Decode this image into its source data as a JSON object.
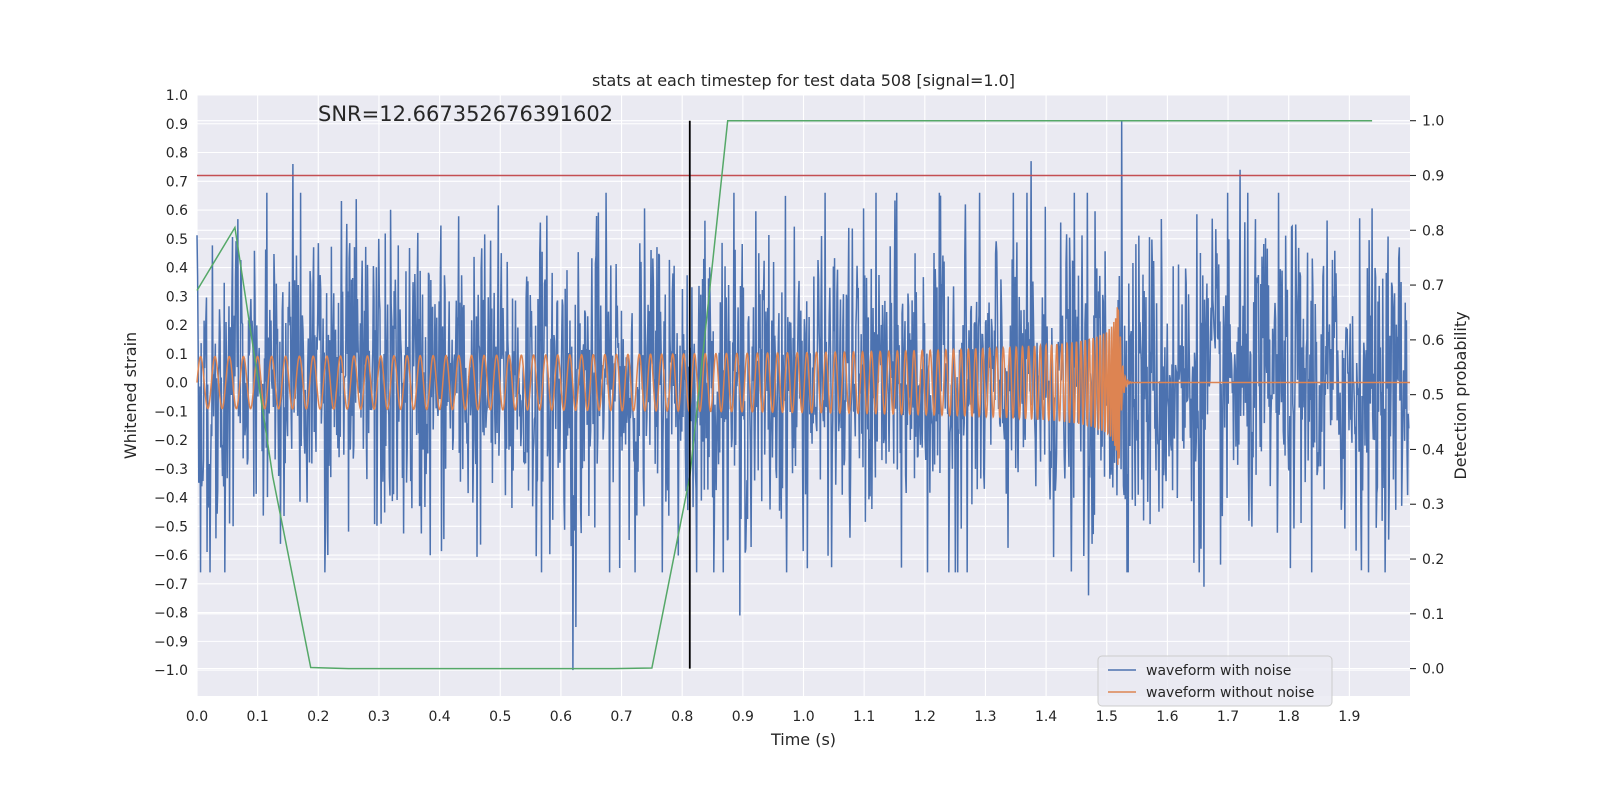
{
  "chart_data": {
    "type": "line",
    "title": "stats at each timestep for test data 508 [signal=1.0]",
    "annotation": "SNR=12.667352676391602",
    "xlabel": "Time (s)",
    "ylabel": "Whitened strain",
    "y2label": "Detection probability",
    "xlim": [
      0.0,
      2.0
    ],
    "ylim": [
      -1.09,
      1.0
    ],
    "y2lim": [
      -0.05,
      1.0469
    ],
    "x_ticks": [
      0.0,
      0.1,
      0.2,
      0.3,
      0.4,
      0.5,
      0.6,
      0.7,
      0.8,
      0.9,
      1.0,
      1.1,
      1.2,
      1.3,
      1.4,
      1.5,
      1.6,
      1.7,
      1.8,
      1.9
    ],
    "x_tick_labels": [
      "0.0",
      "0.1",
      "0.2",
      "0.3",
      "0.4",
      "0.5",
      "0.6",
      "0.7",
      "0.8",
      "0.9",
      "1.0",
      "1.1",
      "1.2",
      "1.3",
      "1.4",
      "1.5",
      "1.6",
      "1.7",
      "1.8",
      "1.9"
    ],
    "y_ticks": [
      -1.0,
      -0.9,
      -0.8,
      -0.7,
      -0.6,
      -0.5,
      -0.4,
      -0.3,
      -0.2,
      -0.1,
      0.0,
      0.1,
      0.2,
      0.3,
      0.4,
      0.5,
      0.6,
      0.7,
      0.8,
      0.9,
      1.0
    ],
    "y_tick_labels": [
      "−1.0",
      "−0.9",
      "−0.8",
      "−0.7",
      "−0.6",
      "−0.5",
      "−0.4",
      "−0.3",
      "−0.2",
      "−0.1",
      "0.0",
      "0.1",
      "0.2",
      "0.3",
      "0.4",
      "0.5",
      "0.6",
      "0.7",
      "0.8",
      "0.9",
      "1.0"
    ],
    "y2_ticks": [
      0.0,
      0.1,
      0.2,
      0.3,
      0.4,
      0.5,
      0.6,
      0.7,
      0.8,
      0.9,
      1.0
    ],
    "y2_tick_labels": [
      "0.0",
      "0.1",
      "0.2",
      "0.3",
      "0.4",
      "0.5",
      "0.6",
      "0.7",
      "0.8",
      "0.9",
      "1.0"
    ],
    "legend": {
      "placement": "lower-right",
      "entries": [
        {
          "label": "waveform with noise",
          "color": "#4c72b0"
        },
        {
          "label": "waveform without noise",
          "color": "#dd8452"
        }
      ]
    },
    "series": [
      {
        "name": "waveform with noise",
        "axis": "left",
        "color": "#4c72b0",
        "generated": true,
        "x_range": [
          0.0,
          1.998
        ],
        "samples": 2048,
        "amplitude_std": 0.27,
        "peaks": [
          {
            "x": 0.158,
            "y": 0.76
          },
          {
            "x": 0.62,
            "y": -1.0
          },
          {
            "x": 0.625,
            "y": -0.85
          },
          {
            "x": 0.895,
            "y": -0.81
          },
          {
            "x": 1.375,
            "y": 0.77
          },
          {
            "x": 1.525,
            "y": 0.91
          },
          {
            "x": 1.72,
            "y": 0.74
          },
          {
            "x": 1.47,
            "y": -0.74
          },
          {
            "x": 1.66,
            "y": -0.71
          }
        ]
      },
      {
        "name": "waveform without noise",
        "axis": "left",
        "color": "#dd8452",
        "generated": true,
        "chirp": {
          "t_merge": 1.52,
          "f_start": 42,
          "amp_start": 0.045,
          "amp_peak": 0.3,
          "offset": 0.0
        }
      },
      {
        "name": "detection probability",
        "axis": "right",
        "color": "#55a868",
        "x": [
          0.0,
          0.0625,
          0.125,
          0.1875,
          0.25,
          0.3125,
          0.375,
          0.4375,
          0.5,
          0.5625,
          0.625,
          0.6875,
          0.75,
          0.8125,
          0.875,
          0.9375,
          1.0,
          1.0625,
          1.125,
          1.1875,
          1.25,
          1.3125,
          1.375,
          1.4375,
          1.5,
          1.5625,
          1.625,
          1.6875,
          1.75,
          1.8125,
          1.875,
          1.9375
        ],
        "y": [
          0.69,
          0.805,
          0.35,
          0.002,
          0.0,
          0.0,
          0.0,
          0.0,
          0.0,
          0.0,
          0.0,
          0.0,
          0.001,
          0.35,
          1.0,
          1.0,
          1.0,
          1.0,
          1.0,
          1.0,
          1.0,
          1.0,
          1.0,
          1.0,
          1.0,
          1.0,
          1.0,
          1.0,
          1.0,
          1.0,
          1.0,
          1.0
        ]
      }
    ],
    "hlines": [
      {
        "name": "threshold",
        "axis": "right",
        "y": 0.9,
        "color": "#c44e52"
      }
    ],
    "vlines": [
      {
        "name": "marker",
        "x": 0.8125,
        "y2_from": 0.0,
        "y2_to": 1.0,
        "color": "#000000"
      }
    ],
    "styles": {
      "background": "#eaeaf2",
      "grid": "#ffffff"
    }
  }
}
